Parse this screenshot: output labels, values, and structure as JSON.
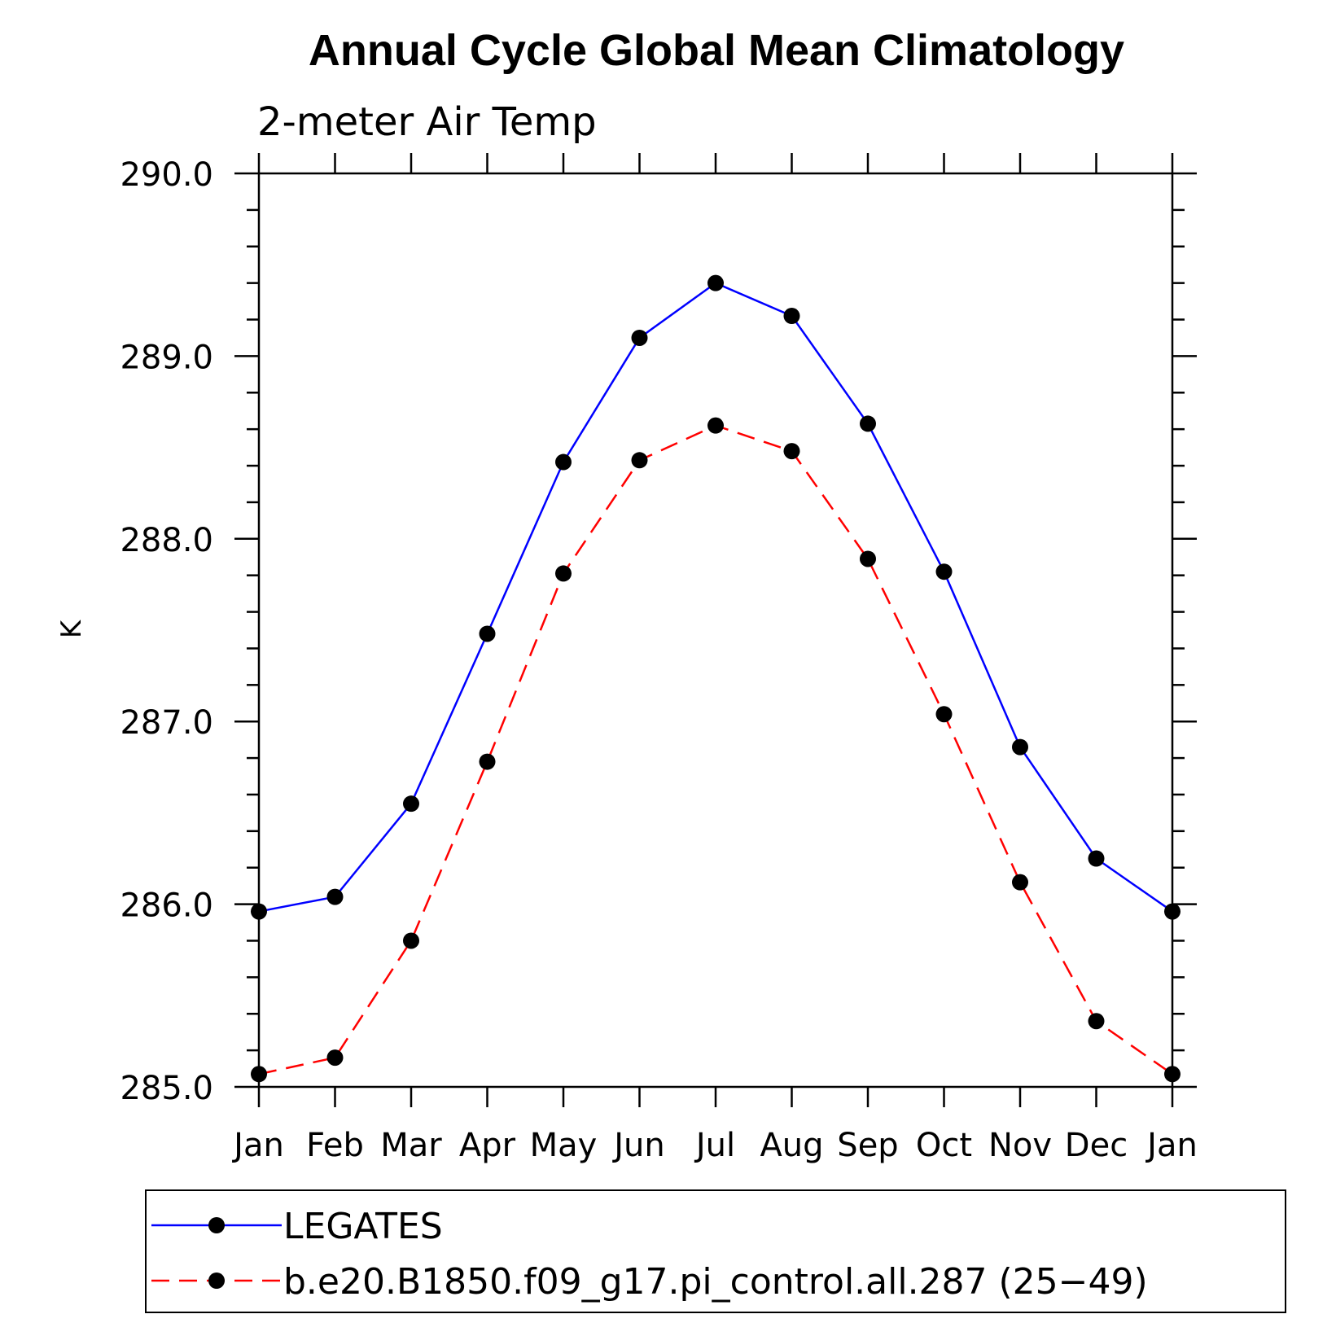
{
  "chart_data": {
    "type": "line",
    "title": "Annual Cycle Global Mean Climatology",
    "subtitle": "2-meter Air Temp",
    "xlabel": "",
    "ylabel": "K",
    "categories": [
      "Jan",
      "Feb",
      "Mar",
      "Apr",
      "May",
      "Jun",
      "Jul",
      "Aug",
      "Sep",
      "Oct",
      "Nov",
      "Dec",
      "Jan"
    ],
    "ylim": [
      285.0,
      290.0
    ],
    "yticks": [
      "285.0",
      "286.0",
      "287.0",
      "288.0",
      "289.0",
      "290.0"
    ],
    "minor_tick_step": 0.2,
    "grid": false,
    "legend_position": "bottom",
    "series": [
      {
        "name": "LEGATES",
        "color": "#0000ff",
        "dash": "solid",
        "values": [
          285.96,
          286.04,
          286.55,
          287.48,
          288.42,
          289.1,
          289.4,
          289.22,
          288.63,
          287.82,
          286.86,
          286.25,
          285.96
        ]
      },
      {
        "name": "b.e20.B1850.f09_g17.pi_control.all.287 (25−49)",
        "color": "#ff0000",
        "dash": "dashed",
        "values": [
          285.07,
          285.16,
          285.8,
          286.78,
          287.81,
          288.43,
          288.62,
          288.48,
          287.89,
          287.04,
          286.12,
          285.36,
          285.07
        ]
      }
    ]
  }
}
